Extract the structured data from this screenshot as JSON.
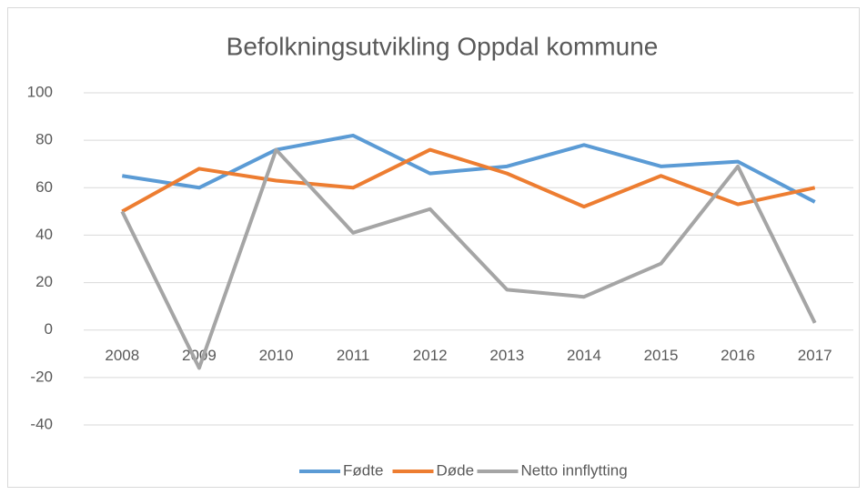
{
  "chart_data": {
    "type": "line",
    "title": "Befolkningsutvikling Oppdal kommune",
    "categories": [
      "2008",
      "2009",
      "2010",
      "2011",
      "2012",
      "2013",
      "2014",
      "2015",
      "2016",
      "2017"
    ],
    "series": [
      {
        "name": "Fødte",
        "color": "#5b9bd5",
        "values": [
          65,
          60,
          76,
          82,
          66,
          69,
          78,
          69,
          71,
          54
        ]
      },
      {
        "name": "Døde",
        "color": "#ed7d31",
        "values": [
          50,
          68,
          63,
          60,
          76,
          66,
          52,
          65,
          53,
          60
        ]
      },
      {
        "name": "Netto innflytting",
        "color": "#a5a5a5",
        "values": [
          50,
          -16,
          76,
          41,
          51,
          17,
          14,
          28,
          69,
          3
        ]
      }
    ],
    "ylim": [
      -40,
      100
    ],
    "yticks": [
      -40,
      -20,
      0,
      20,
      40,
      60,
      80,
      100
    ],
    "grid": true,
    "legend": "bottom"
  }
}
